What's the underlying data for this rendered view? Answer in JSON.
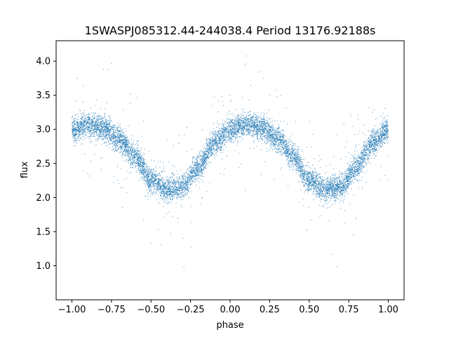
{
  "chart_data": {
    "type": "scatter",
    "title": "1SWASPJ085312.44-244038.4 Period 13176.92188s",
    "xlabel": "phase",
    "ylabel": "flux",
    "xlim": [
      -1.1,
      1.1
    ],
    "ylim": [
      0.5,
      4.3
    ],
    "x_ticks": [
      -1.0,
      -0.75,
      -0.5,
      -0.25,
      0.0,
      0.25,
      0.5,
      0.75,
      1.0
    ],
    "x_tick_labels": [
      "−1.00",
      "−0.75",
      "−0.50",
      "−0.25",
      "0.00",
      "0.25",
      "0.50",
      "0.75",
      "1.00"
    ],
    "y_ticks": [
      1.0,
      1.5,
      2.0,
      2.5,
      3.0,
      3.5,
      4.0
    ],
    "y_tick_labels": [
      "1.0",
      "1.5",
      "2.0",
      "2.5",
      "3.0",
      "3.5",
      "4.0"
    ],
    "grid": false,
    "legend": "none",
    "marker_color": "#1f77b4",
    "series": [
      {
        "x_range": [
          -1.0,
          1.0
        ],
        "curve": [
          [
            -1.0,
            3.0
          ],
          [
            -0.9,
            3.07
          ],
          [
            -0.8,
            3.02
          ],
          [
            -0.7,
            2.85
          ],
          [
            -0.6,
            2.6
          ],
          [
            -0.5,
            2.25
          ],
          [
            -0.4,
            2.12
          ],
          [
            -0.3,
            2.15
          ],
          [
            -0.2,
            2.45
          ],
          [
            -0.1,
            2.8
          ],
          [
            0.0,
            3.0
          ],
          [
            0.1,
            3.07
          ],
          [
            0.2,
            3.02
          ],
          [
            0.3,
            2.85
          ],
          [
            0.4,
            2.6
          ],
          [
            0.5,
            2.25
          ],
          [
            0.6,
            2.12
          ],
          [
            0.7,
            2.15
          ],
          [
            0.8,
            2.45
          ],
          [
            0.9,
            2.8
          ],
          [
            1.0,
            3.0
          ]
        ],
        "max_flux": 4.15,
        "min_flux": 0.67
      }
    ]
  }
}
